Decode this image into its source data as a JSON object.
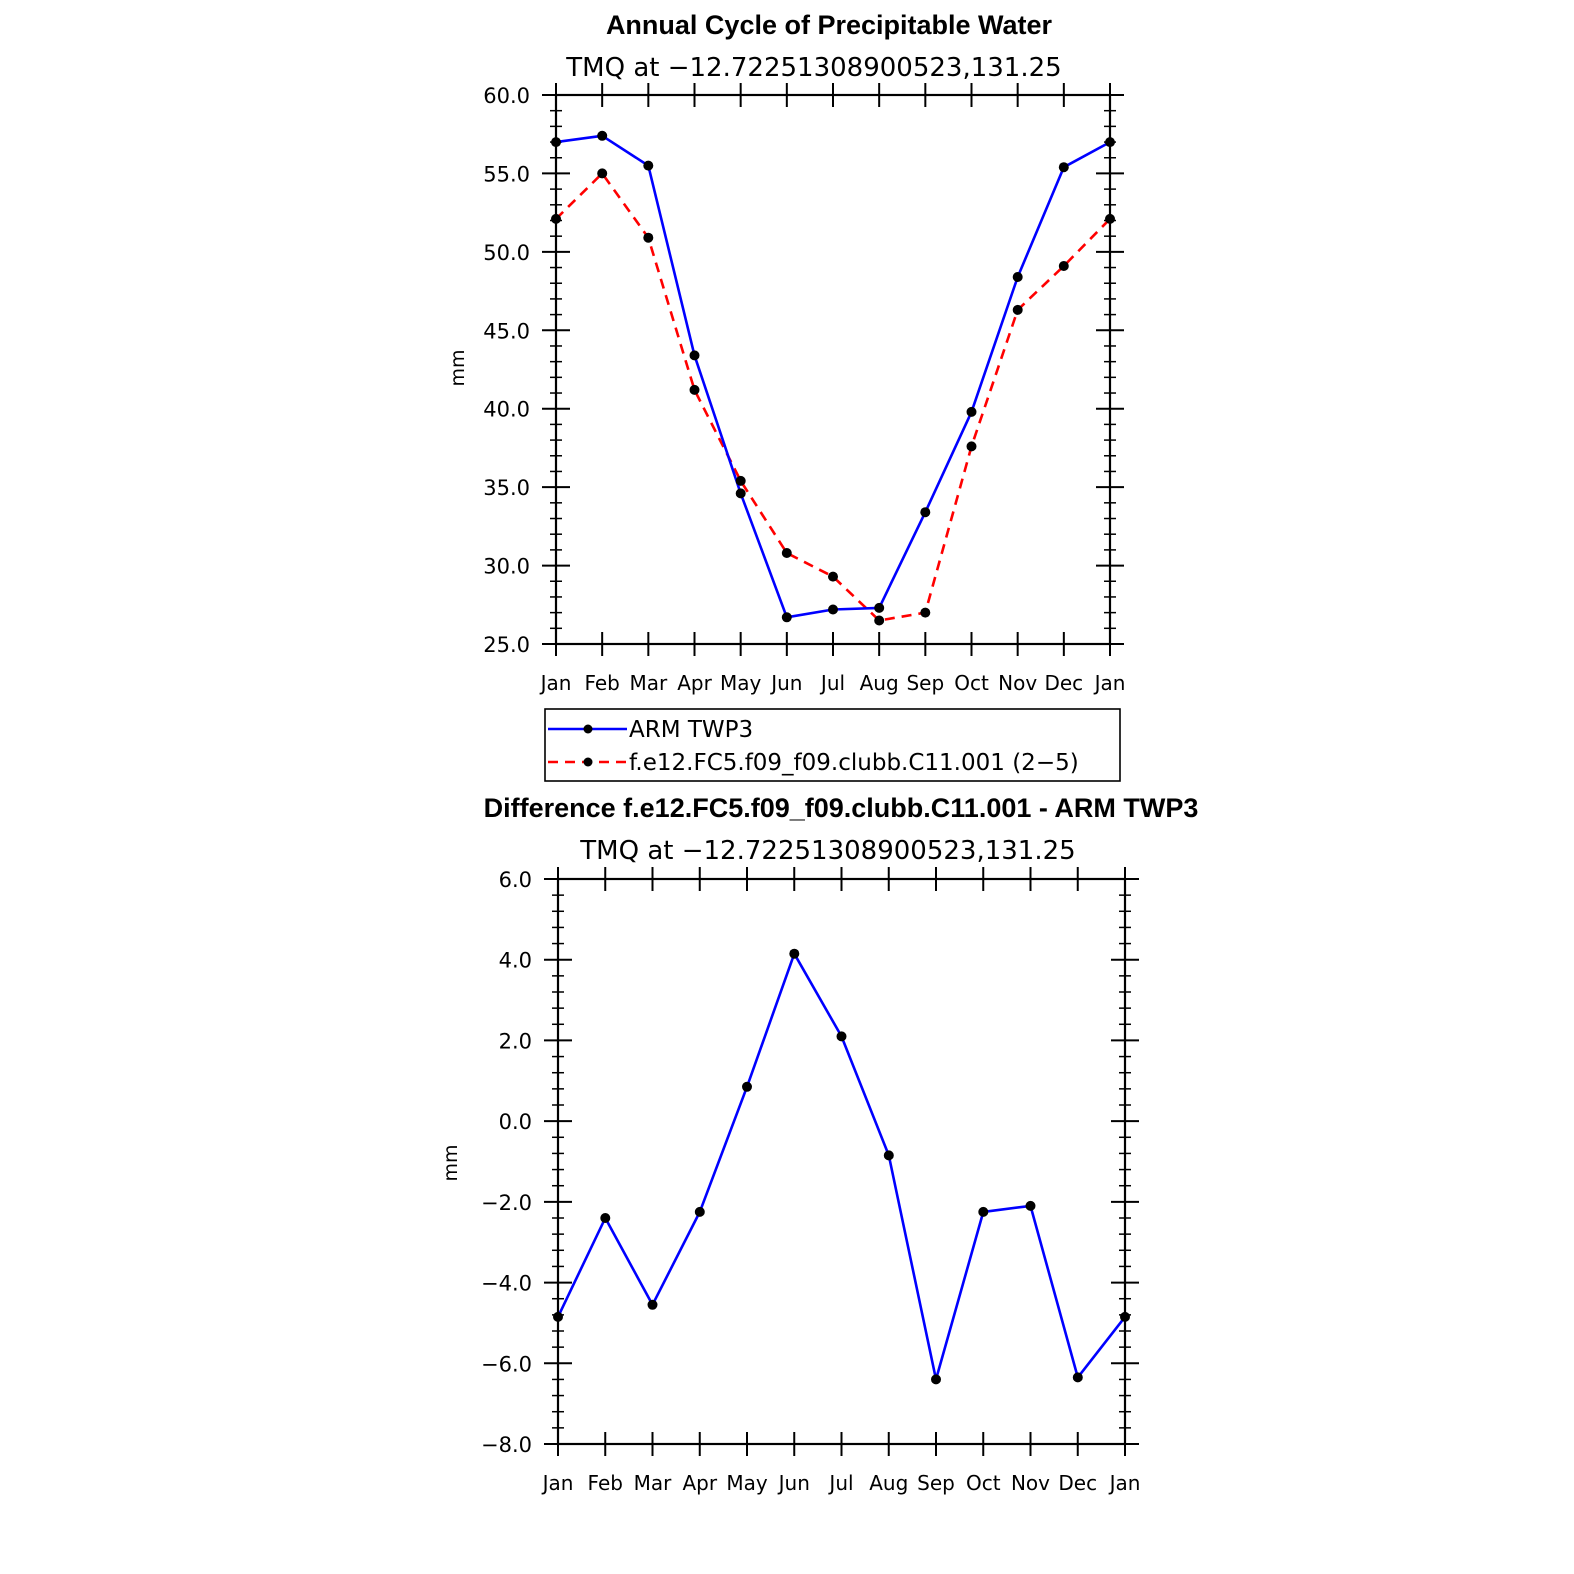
{
  "chart_data": [
    {
      "type": "line",
      "title": "Annual Cycle of Precipitable Water",
      "subtitle": "TMQ  at  −12.72251308900523,131.25",
      "ylabel": "mm",
      "xlabel": "",
      "categories": [
        "Jan",
        "Feb",
        "Mar",
        "Apr",
        "May",
        "Jun",
        "Jul",
        "Aug",
        "Sep",
        "Oct",
        "Nov",
        "Dec",
        "Jan"
      ],
      "ylim": [
        25.0,
        60.0
      ],
      "y_ticks": [
        "25.0",
        "30.0",
        "35.0",
        "40.0",
        "45.0",
        "50.0",
        "55.0",
        "60.0"
      ],
      "legend_position": "bottom",
      "series": [
        {
          "name": "ARM  TWP3",
          "color": "#0000ff",
          "dash": "solid",
          "values": [
            57.0,
            57.4,
            55.5,
            43.4,
            34.6,
            26.7,
            27.2,
            27.3,
            33.4,
            39.8,
            48.4,
            55.4,
            57.0
          ]
        },
        {
          "name": "f.e12.FC5.f09_f09.clubb.C11.001 (2−5)",
          "color": "#ff0000",
          "dash": "dashed",
          "values": [
            52.1,
            55.0,
            50.9,
            41.2,
            35.4,
            30.8,
            29.3,
            26.5,
            27.0,
            37.6,
            46.3,
            49.1,
            52.1
          ]
        }
      ]
    },
    {
      "type": "line",
      "title": "Difference f.e12.FC5.f09_f09.clubb.C11.001 - ARM TWP3",
      "subtitle": "TMQ  at  −12.72251308900523,131.25",
      "ylabel": "mm",
      "xlabel": "",
      "categories": [
        "Jan",
        "Feb",
        "Mar",
        "Apr",
        "May",
        "Jun",
        "Jul",
        "Aug",
        "Sep",
        "Oct",
        "Nov",
        "Dec",
        "Jan"
      ],
      "ylim": [
        -8.0,
        6.0
      ],
      "y_ticks": [
        "−8.0",
        "−6.0",
        "−4.0",
        "−2.0",
        "0.0",
        "2.0",
        "4.0",
        "6.0"
      ],
      "series": [
        {
          "name": "",
          "color": "#0000ff",
          "dash": "solid",
          "values": [
            -4.85,
            -2.4,
            -4.55,
            -2.25,
            0.85,
            4.15,
            2.1,
            -0.85,
            -6.4,
            -2.25,
            -2.1,
            -6.35,
            -4.85
          ]
        }
      ]
    }
  ]
}
